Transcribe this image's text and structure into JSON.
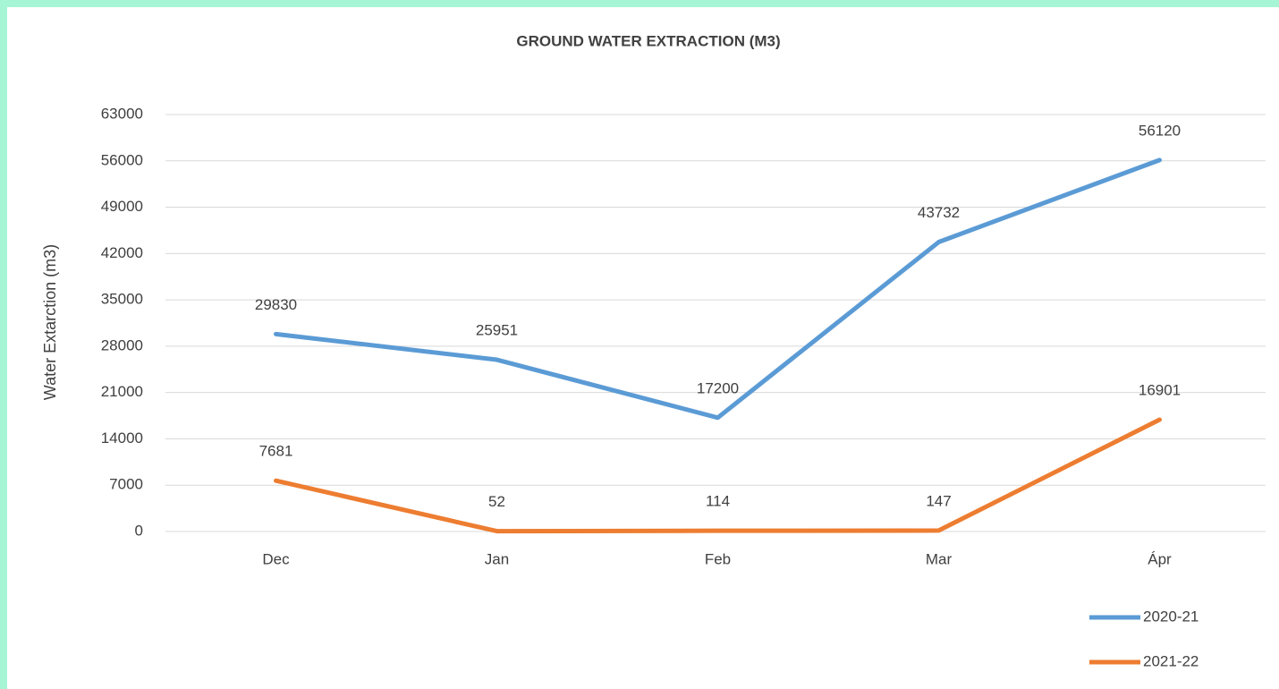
{
  "chart_data": {
    "type": "line",
    "title": "GROUND WATER EXTRACTION (M3)",
    "y_label": "Water Extarction (m3)",
    "categories": [
      "Dec",
      "Jan",
      "Feb",
      "Mar",
      "Ápr"
    ],
    "series": [
      {
        "name": "2020-21",
        "color": "#5b9bd5",
        "values": [
          29830,
          25951,
          17200,
          43732,
          56120
        ]
      },
      {
        "name": "2021-22",
        "color": "#ed7d31",
        "values": [
          7681,
          52,
          114,
          147,
          16901
        ]
      }
    ],
    "ylim": [
      0,
      63000
    ],
    "yticks": [
      0,
      7000,
      14000,
      21000,
      28000,
      35000,
      42000,
      49000,
      56000,
      63000
    ],
    "grid": true,
    "data_labels": true,
    "legend": "bottom-right"
  }
}
